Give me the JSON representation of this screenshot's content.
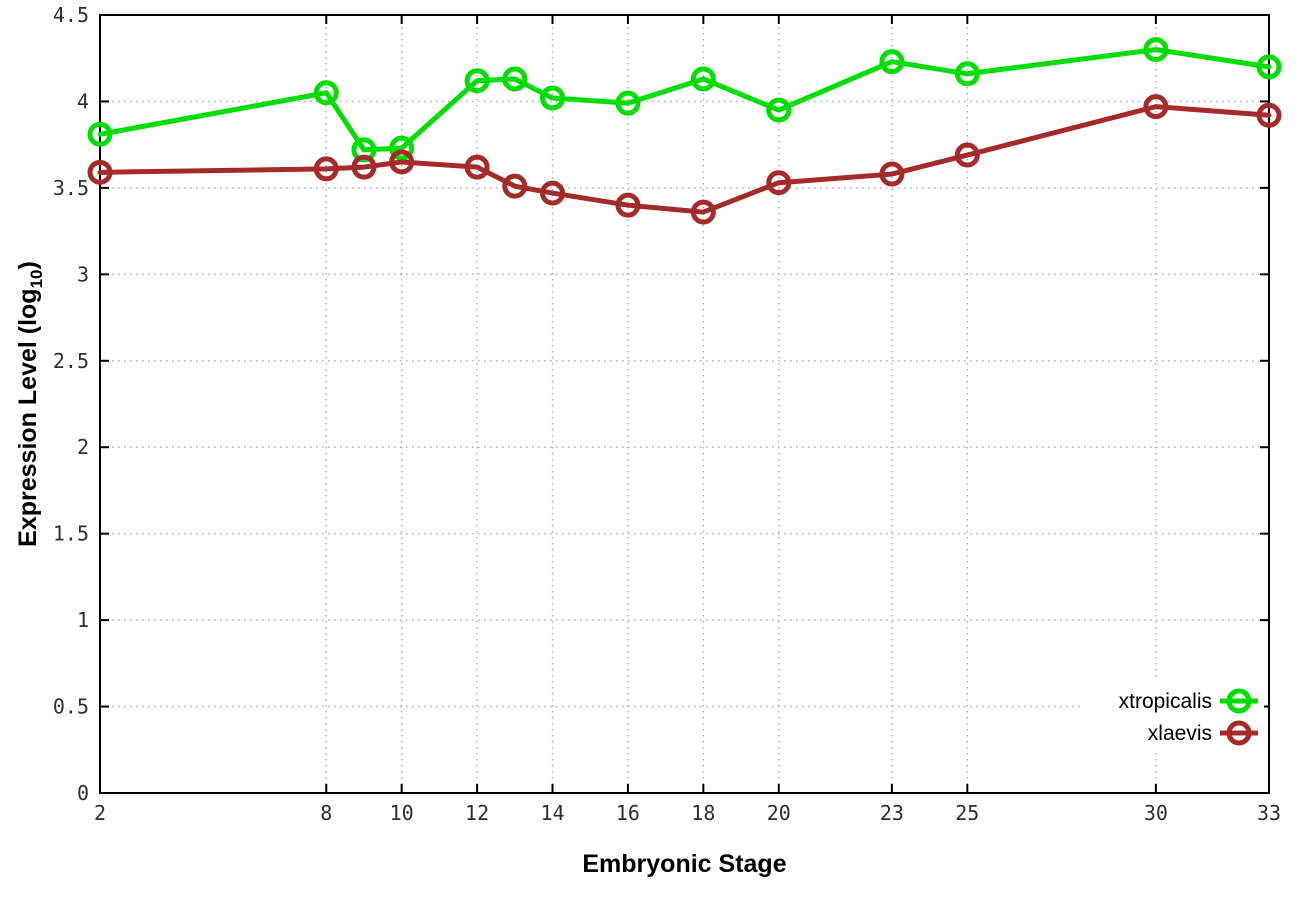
{
  "chart_data": {
    "type": "line",
    "title": "",
    "xlabel": "Embryonic Stage",
    "ylabel": "Expression Level (log10)",
    "ylabel_parts": {
      "main": "Expression Level (log",
      "sub": "10",
      "end": ")"
    },
    "x": [
      2,
      8,
      9,
      10,
      12,
      13,
      14,
      16,
      18,
      20,
      23,
      25,
      30,
      33
    ],
    "x_tick_labels": [
      "2",
      "8",
      "10",
      "12",
      "14",
      "16",
      "18",
      "20",
      "23",
      "25",
      "30",
      "33"
    ],
    "x_ticks": [
      2,
      8,
      10,
      12,
      14,
      16,
      18,
      20,
      23,
      25,
      30,
      33
    ],
    "y_tick_labels": [
      "0",
      "0.5",
      "1",
      "1.5",
      "2",
      "2.5",
      "3",
      "3.5",
      "4",
      "4.5"
    ],
    "y_ticks": [
      0,
      0.5,
      1,
      1.5,
      2,
      2.5,
      3,
      3.5,
      4,
      4.5
    ],
    "xlim": [
      2,
      33
    ],
    "ylim": [
      0,
      4.5
    ],
    "grid": true,
    "legend_position": "inside-bottom-right",
    "series": [
      {
        "name": "xtropicalis",
        "color": "#00dd00",
        "values": [
          3.81,
          4.05,
          3.72,
          3.73,
          4.12,
          4.13,
          4.02,
          3.99,
          4.13,
          3.95,
          4.23,
          4.16,
          4.3,
          4.2
        ]
      },
      {
        "name": "xlaevis",
        "color": "#a52a2a",
        "values": [
          3.59,
          3.61,
          3.62,
          3.65,
          3.62,
          3.51,
          3.47,
          3.4,
          3.36,
          3.53,
          3.58,
          3.69,
          3.97,
          3.92
        ]
      }
    ],
    "style": {
      "grid_color": "#a6adb5",
      "axis_color": "#000000",
      "tick_label_color": "#2e2e2e",
      "background": "#ffffff"
    }
  }
}
